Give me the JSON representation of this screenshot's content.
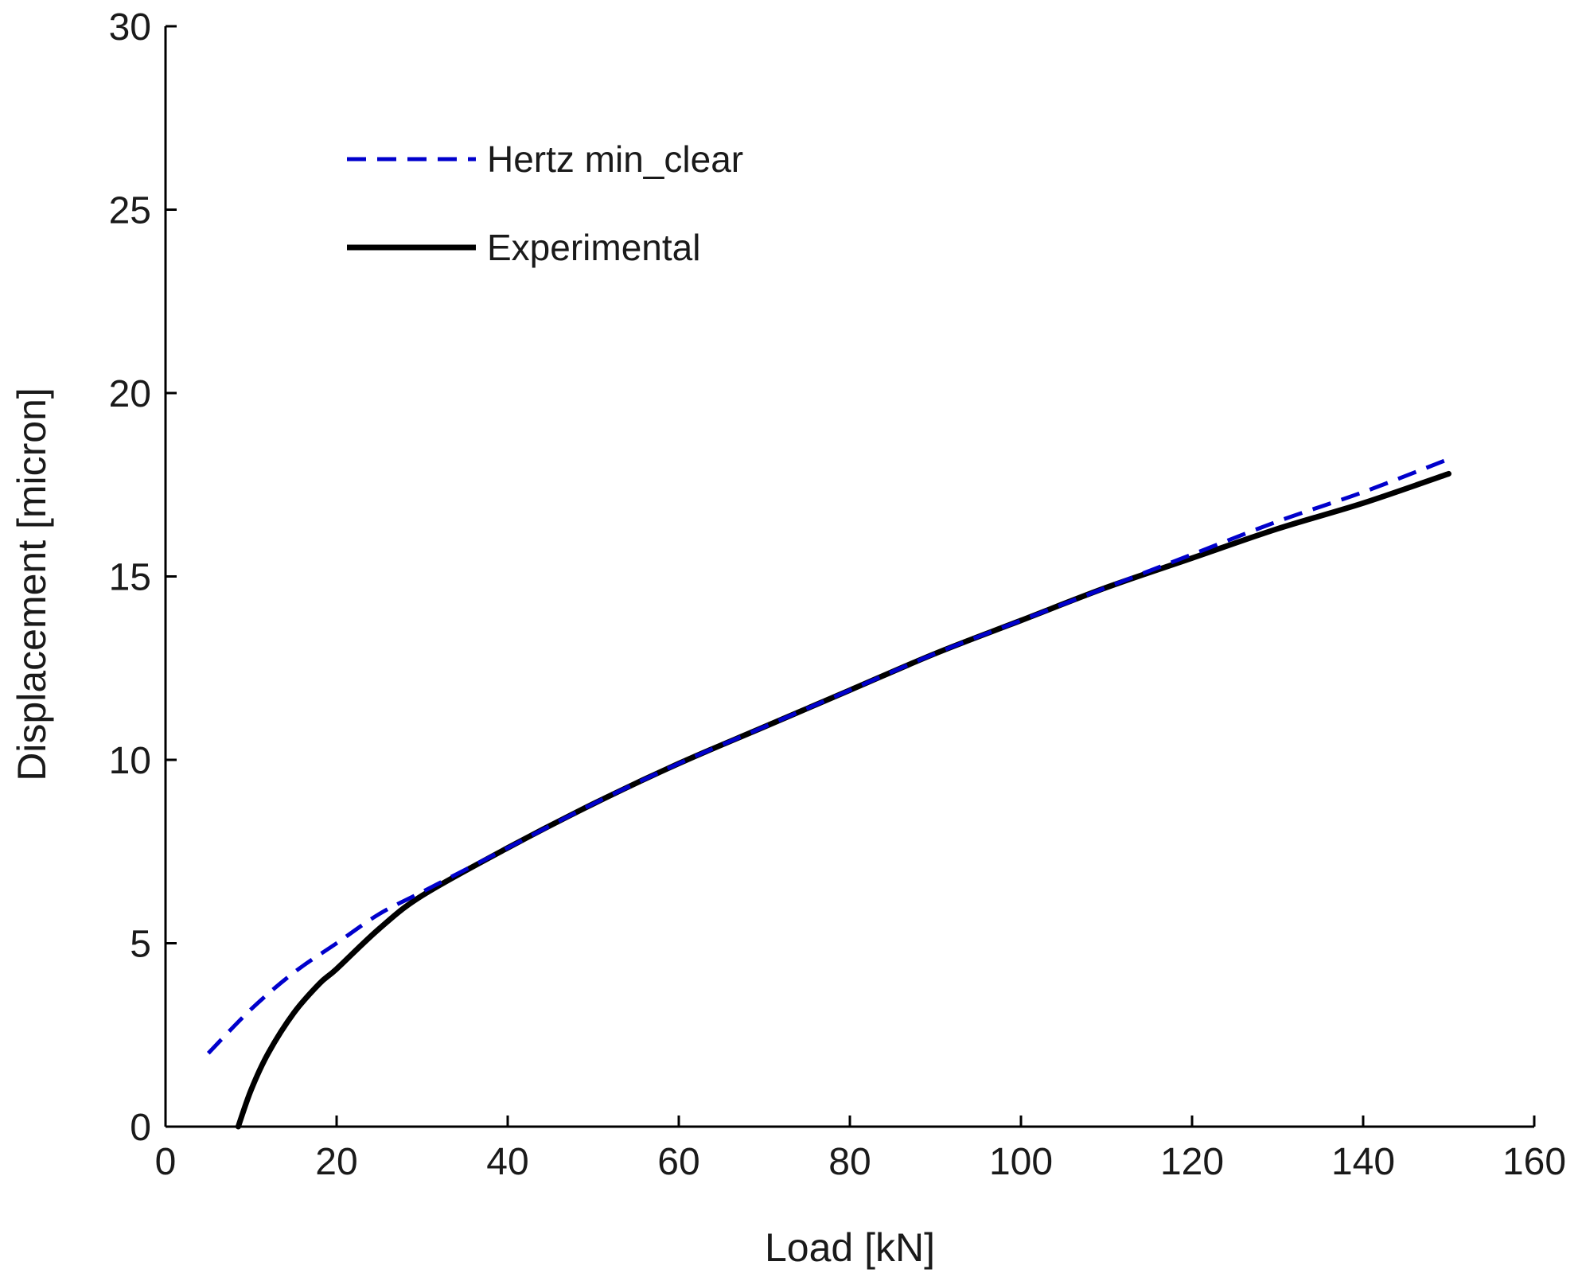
{
  "chart_data": {
    "type": "line",
    "title": "",
    "xlabel": "Load [kN]",
    "ylabel": "Displacement [micron]",
    "xlim": [
      0,
      160
    ],
    "ylim": [
      0,
      30
    ],
    "xticks": [
      0,
      20,
      40,
      60,
      80,
      100,
      120,
      140,
      160
    ],
    "yticks": [
      0,
      5,
      10,
      15,
      20,
      25,
      30
    ],
    "grid": false,
    "legend_position": "top-left",
    "series": [
      {
        "name": "Hertz min_clear",
        "style": "dashed",
        "color": "#0000cc",
        "x": [
          5,
          10,
          15,
          20,
          25,
          30,
          40,
          50,
          60,
          70,
          80,
          90,
          100,
          110,
          120,
          130,
          140,
          150
        ],
        "y": [
          2.0,
          3.2,
          4.2,
          5.0,
          5.8,
          6.4,
          7.6,
          8.8,
          9.9,
          10.9,
          11.9,
          12.9,
          13.8,
          14.7,
          15.6,
          16.5,
          17.3,
          18.2
        ]
      },
      {
        "name": "Experimental",
        "style": "solid",
        "color": "#000000",
        "x": [
          8.5,
          10,
          12,
          15,
          18,
          20,
          25,
          30,
          40,
          50,
          60,
          70,
          80,
          90,
          100,
          110,
          120,
          130,
          140,
          150
        ],
        "y": [
          0.0,
          1.0,
          2.0,
          3.1,
          3.9,
          4.3,
          5.4,
          6.3,
          7.6,
          8.8,
          9.9,
          10.9,
          11.9,
          12.9,
          13.8,
          14.7,
          15.5,
          16.3,
          17.0,
          17.8
        ]
      }
    ]
  }
}
